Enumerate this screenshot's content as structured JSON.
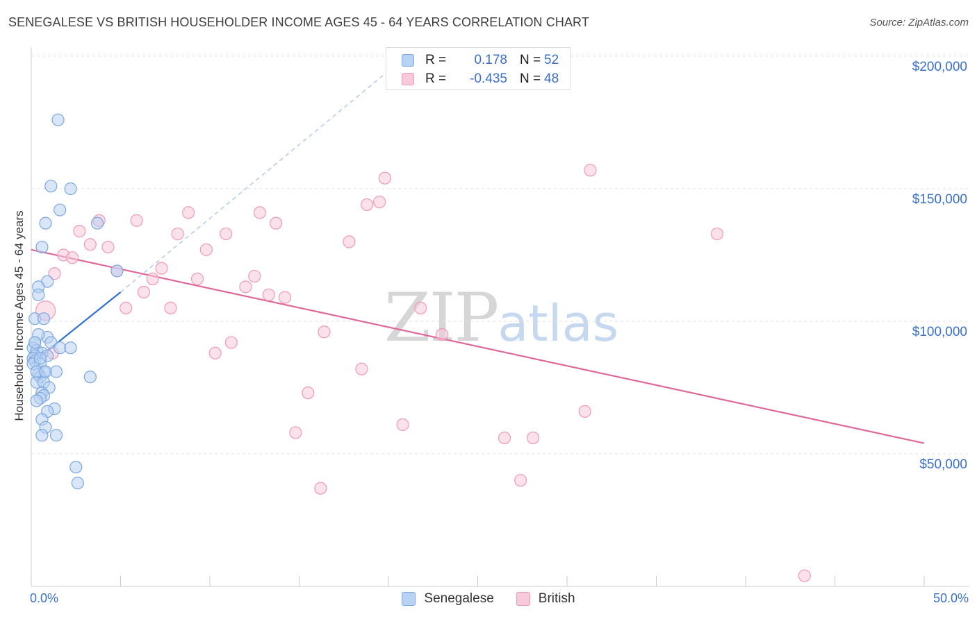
{
  "title": "SENEGALESE VS BRITISH HOUSEHOLDER INCOME AGES 45 - 64 YEARS CORRELATION CHART",
  "source": "Source: ZipAtlas.com",
  "watermark": {
    "part1": "ZIP",
    "part2": "atlas"
  },
  "legend": {
    "r_label": "R =",
    "n_label": "N =",
    "rows": [
      {
        "r": "0.178",
        "n": "52"
      },
      {
        "r": "-0.435",
        "n": "48"
      }
    ]
  },
  "colors": {
    "blue": "#7aa7e0",
    "blue_fill": "#b9d1f2",
    "blue_line": "#2f6fd0",
    "pink": "#ee9ab5",
    "pink_fill": "#f8c9d8",
    "pink_line": "#e0679a"
  },
  "chart_data": {
    "type": "scatter",
    "title": "SENEGALESE VS BRITISH HOUSEHOLDER INCOME AGES 45 - 64 YEARS CORRELATION CHART",
    "xlabel": "",
    "ylabel": "Householder Income Ages 45 - 64 years",
    "xlim": [
      0,
      50
    ],
    "ylim": [
      0,
      210000
    ],
    "x_tick_labels": [
      "0.0%",
      "50.0%"
    ],
    "y_ticks": [
      50000,
      100000,
      150000,
      200000
    ],
    "y_tick_labels": [
      "$50,000",
      "$100,000",
      "$150,000",
      "$200,000"
    ],
    "grid": true,
    "series": [
      {
        "name": "Senegalese",
        "color": "#7aa7e0",
        "points": [
          [
            1.5,
            176000
          ],
          [
            1.1,
            151000
          ],
          [
            2.2,
            150000
          ],
          [
            1.6,
            142000
          ],
          [
            3.7,
            137000
          ],
          [
            0.8,
            137000
          ],
          [
            0.6,
            128000
          ],
          [
            4.8,
            119000
          ],
          [
            0.9,
            115000
          ],
          [
            0.4,
            113000
          ],
          [
            0.4,
            110000
          ],
          [
            0.2,
            101000
          ],
          [
            0.7,
            101000
          ],
          [
            0.9,
            94000
          ],
          [
            0.4,
            95000
          ],
          [
            0.2,
            92000
          ],
          [
            1.1,
            92000
          ],
          [
            0.1,
            90000
          ],
          [
            1.6,
            90000
          ],
          [
            2.2,
            90000
          ],
          [
            0.3,
            89000
          ],
          [
            0.6,
            88000
          ],
          [
            0.2,
            87000
          ],
          [
            0.9,
            87000
          ],
          [
            0.1,
            86000
          ],
          [
            0.2,
            85000
          ],
          [
            0.5,
            84000
          ],
          [
            0.1,
            84000
          ],
          [
            1.4,
            81000
          ],
          [
            0.7,
            81000
          ],
          [
            0.4,
            80000
          ],
          [
            0.5,
            79000
          ],
          [
            3.3,
            79000
          ],
          [
            0.3,
            77000
          ],
          [
            0.7,
            77000
          ],
          [
            1.0,
            75000
          ],
          [
            0.6,
            73000
          ],
          [
            0.7,
            72000
          ],
          [
            0.5,
            71000
          ],
          [
            0.3,
            70000
          ],
          [
            1.3,
            67000
          ],
          [
            0.9,
            66000
          ],
          [
            0.6,
            63000
          ],
          [
            0.8,
            60000
          ],
          [
            0.6,
            57000
          ],
          [
            1.4,
            57000
          ],
          [
            2.5,
            45000
          ],
          [
            2.6,
            39000
          ],
          [
            0.3,
            81000
          ],
          [
            0.8,
            81000
          ],
          [
            0.5,
            86000
          ],
          [
            0.2,
            92000
          ]
        ],
        "trend": {
          "x": [
            0,
            5
          ],
          "y": [
            84000,
            111000
          ],
          "dashed_extension_to": [
            21,
            200000
          ]
        }
      },
      {
        "name": "British",
        "color": "#ee9ab5",
        "points": [
          [
            0.8,
            104000
          ],
          [
            1.3,
            118000
          ],
          [
            1.8,
            125000
          ],
          [
            2.3,
            124000
          ],
          [
            2.7,
            134000
          ],
          [
            3.3,
            129000
          ],
          [
            3.8,
            138000
          ],
          [
            4.3,
            128000
          ],
          [
            4.8,
            119000
          ],
          [
            5.3,
            105000
          ],
          [
            5.9,
            138000
          ],
          [
            6.3,
            111000
          ],
          [
            6.8,
            116000
          ],
          [
            7.3,
            120000
          ],
          [
            7.8,
            105000
          ],
          [
            8.2,
            133000
          ],
          [
            8.8,
            141000
          ],
          [
            9.3,
            116000
          ],
          [
            9.8,
            127000
          ],
          [
            10.3,
            88000
          ],
          [
            10.9,
            133000
          ],
          [
            11.2,
            92000
          ],
          [
            12.0,
            113000
          ],
          [
            12.5,
            117000
          ],
          [
            12.8,
            141000
          ],
          [
            13.3,
            110000
          ],
          [
            13.7,
            137000
          ],
          [
            14.2,
            109000
          ],
          [
            14.8,
            58000
          ],
          [
            15.5,
            73000
          ],
          [
            16.2,
            37000
          ],
          [
            16.4,
            96000
          ],
          [
            17.8,
            130000
          ],
          [
            18.5,
            82000
          ],
          [
            18.8,
            144000
          ],
          [
            19.5,
            145000
          ],
          [
            19.8,
            154000
          ],
          [
            20.8,
            61000
          ],
          [
            21.8,
            105000
          ],
          [
            23.0,
            95000
          ],
          [
            26.5,
            56000
          ],
          [
            27.4,
            40000
          ],
          [
            28.1,
            56000
          ],
          [
            31.0,
            66000
          ],
          [
            31.3,
            157000
          ],
          [
            38.4,
            133000
          ],
          [
            43.3,
            4000
          ],
          [
            1.2,
            88000
          ]
        ],
        "trend": {
          "x": [
            0,
            50
          ],
          "y": [
            127000,
            54000
          ]
        }
      }
    ]
  }
}
